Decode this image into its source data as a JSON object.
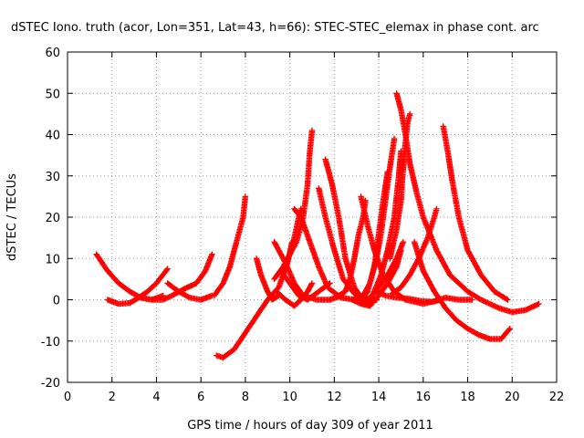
{
  "chart_data": {
    "type": "scatter",
    "title": "dSTEC Iono. truth (acor, Lon=351, Lat=43, h=66): STEC-STEC_elemax in phase cont. arc",
    "xlabel": "GPS time / hours of day 309 of year 2011",
    "ylabel": "dSTEC  / TECUs",
    "xlim": [
      0,
      22
    ],
    "ylim": [
      -20,
      60
    ],
    "xticks": [
      0,
      2,
      4,
      6,
      8,
      10,
      12,
      14,
      16,
      18,
      20,
      22
    ],
    "yticks": [
      -20,
      -10,
      0,
      10,
      20,
      30,
      40,
      50,
      60
    ],
    "grid": true,
    "marker": "+",
    "color": "#ff0000",
    "series": [
      {
        "points": [
          [
            1.3,
            11
          ],
          [
            1.8,
            7
          ],
          [
            2.3,
            4
          ],
          [
            2.8,
            2
          ],
          [
            3.3,
            0.5
          ],
          [
            3.8,
            0
          ],
          [
            4.3,
            1
          ]
        ]
      },
      {
        "points": [
          [
            1.8,
            0
          ],
          [
            2.3,
            -1
          ],
          [
            2.8,
            -0.8
          ],
          [
            3.2,
            0.5
          ],
          [
            3.6,
            2
          ],
          [
            4.0,
            4
          ],
          [
            4.5,
            7.5
          ]
        ]
      },
      {
        "points": [
          [
            3.3,
            0.5
          ],
          [
            3.8,
            0
          ],
          [
            4.3,
            0
          ],
          [
            4.7,
            1
          ],
          [
            5.2,
            2.5
          ],
          [
            5.8,
            4
          ],
          [
            6.2,
            7
          ],
          [
            6.5,
            11
          ]
        ]
      },
      {
        "points": [
          [
            4.5,
            4
          ],
          [
            5.0,
            2
          ],
          [
            5.5,
            0.5
          ],
          [
            6.0,
            0
          ],
          [
            6.5,
            1
          ]
        ]
      },
      {
        "points": [
          [
            6.7,
            -13.5
          ],
          [
            7.0,
            -14
          ],
          [
            7.5,
            -12
          ],
          [
            8.0,
            -8
          ],
          [
            8.5,
            -4
          ],
          [
            9.0,
            0
          ],
          [
            9.5,
            3
          ],
          [
            9.9,
            9
          ],
          [
            10.1,
            14
          ]
        ]
      },
      {
        "points": [
          [
            6.6,
            1
          ],
          [
            7.0,
            4
          ],
          [
            7.3,
            8
          ],
          [
            7.6,
            14
          ],
          [
            7.9,
            20
          ],
          [
            8.0,
            25
          ]
        ]
      },
      {
        "points": [
          [
            8.5,
            10
          ],
          [
            8.7,
            6
          ],
          [
            9.0,
            2
          ],
          [
            9.2,
            0
          ],
          [
            9.5,
            1
          ]
        ]
      },
      {
        "points": [
          [
            9.3,
            5
          ],
          [
            9.7,
            8
          ],
          [
            10.0,
            11
          ],
          [
            10.2,
            15
          ],
          [
            10.4,
            20
          ],
          [
            10.5,
            22
          ]
        ]
      },
      {
        "points": [
          [
            9.3,
            14
          ],
          [
            9.8,
            9
          ],
          [
            10.2,
            4
          ],
          [
            10.6,
            1
          ],
          [
            11.2,
            0
          ],
          [
            11.8,
            0
          ],
          [
            12.3,
            1
          ]
        ]
      },
      {
        "points": [
          [
            9.6,
            7
          ],
          [
            10.0,
            4
          ],
          [
            10.4,
            1
          ],
          [
            10.8,
            0
          ],
          [
            11.3,
            2
          ],
          [
            11.8,
            4
          ]
        ]
      },
      {
        "points": [
          [
            9.4,
            2
          ],
          [
            9.8,
            0
          ],
          [
            10.2,
            -1.5
          ],
          [
            10.5,
            0
          ],
          [
            10.8,
            2
          ],
          [
            11.0,
            4
          ]
        ]
      },
      {
        "points": [
          [
            10.2,
            22
          ],
          [
            10.5,
            20
          ],
          [
            10.9,
            14
          ],
          [
            11.3,
            8
          ],
          [
            11.7,
            3
          ],
          [
            12.3,
            0.5
          ],
          [
            12.9,
            0
          ],
          [
            13.3,
            1
          ]
        ]
      },
      {
        "points": [
          [
            9.9,
            10
          ],
          [
            10.3,
            14
          ],
          [
            10.6,
            20
          ],
          [
            10.8,
            28
          ],
          [
            10.9,
            36
          ],
          [
            11.0,
            41
          ]
        ]
      },
      {
        "points": [
          [
            11.3,
            27
          ],
          [
            11.6,
            20
          ],
          [
            12.0,
            12
          ],
          [
            12.4,
            5
          ],
          [
            12.9,
            1.5
          ],
          [
            13.3,
            0.5
          ],
          [
            13.9,
            0
          ]
        ]
      },
      {
        "points": [
          [
            11.6,
            34
          ],
          [
            11.9,
            28
          ],
          [
            12.2,
            20
          ],
          [
            12.5,
            10
          ],
          [
            12.9,
            3
          ],
          [
            13.4,
            -1
          ],
          [
            13.9,
            0
          ]
        ]
      },
      {
        "points": [
          [
            12.2,
            1
          ],
          [
            12.5,
            2
          ],
          [
            12.7,
            5
          ],
          [
            12.9,
            10
          ],
          [
            13.1,
            16
          ],
          [
            13.3,
            20
          ],
          [
            13.4,
            24
          ]
        ]
      },
      {
        "points": [
          [
            12.9,
            0.5
          ],
          [
            13.2,
            0
          ],
          [
            13.5,
            2
          ],
          [
            13.8,
            8
          ],
          [
            14.0,
            16
          ],
          [
            14.2,
            24
          ],
          [
            14.4,
            31
          ]
        ]
      },
      {
        "points": [
          [
            12.8,
            0
          ],
          [
            13.2,
            -1
          ],
          [
            13.6,
            -1.5
          ],
          [
            14.0,
            1
          ],
          [
            14.4,
            4
          ],
          [
            14.8,
            8
          ],
          [
            15.0,
            12
          ]
        ]
      },
      {
        "points": [
          [
            13.2,
            25
          ],
          [
            13.5,
            18
          ],
          [
            13.8,
            12
          ],
          [
            14.2,
            6
          ],
          [
            14.7,
            2
          ],
          [
            15.2,
            0
          ],
          [
            16.0,
            -1
          ],
          [
            16.8,
            0
          ]
        ]
      },
      {
        "points": [
          [
            13.5,
            -1
          ],
          [
            13.8,
            2
          ],
          [
            14.1,
            6
          ],
          [
            14.4,
            12
          ],
          [
            14.7,
            20
          ],
          [
            14.9,
            30
          ],
          [
            15.0,
            36
          ]
        ]
      },
      {
        "points": [
          [
            13.3,
            1
          ],
          [
            13.6,
            4
          ],
          [
            13.9,
            10
          ],
          [
            14.1,
            16
          ],
          [
            14.3,
            24
          ],
          [
            14.5,
            32
          ],
          [
            14.7,
            39
          ]
        ]
      },
      {
        "points": [
          [
            13.4,
            -0.5
          ],
          [
            13.7,
            1
          ],
          [
            14.0,
            3
          ],
          [
            14.4,
            6
          ],
          [
            14.8,
            10
          ],
          [
            15.1,
            14
          ]
        ]
      },
      {
        "points": [
          [
            14.5,
            10
          ],
          [
            14.8,
            17
          ],
          [
            15.0,
            24
          ],
          [
            15.1,
            32
          ],
          [
            15.2,
            38
          ],
          [
            15.3,
            43
          ],
          [
            15.4,
            45
          ]
        ]
      },
      {
        "points": [
          [
            14.8,
            50
          ],
          [
            15.0,
            46
          ],
          [
            15.2,
            40
          ],
          [
            15.4,
            33
          ],
          [
            15.7,
            26
          ],
          [
            16.0,
            20
          ],
          [
            16.6,
            12
          ],
          [
            17.2,
            6
          ],
          [
            18.0,
            2
          ],
          [
            18.6,
            0
          ],
          [
            19.4,
            -2
          ],
          [
            20.0,
            -3
          ],
          [
            20.6,
            -2.5
          ],
          [
            21.2,
            -1
          ]
        ]
      },
      {
        "points": [
          [
            14.6,
            1.5
          ],
          [
            15.0,
            3
          ],
          [
            15.4,
            6
          ],
          [
            15.8,
            10
          ],
          [
            16.2,
            15
          ],
          [
            16.5,
            20
          ],
          [
            16.6,
            22
          ]
        ]
      },
      {
        "points": [
          [
            13.9,
            2
          ],
          [
            14.3,
            1
          ],
          [
            14.8,
            0.5
          ],
          [
            15.3,
            0.3
          ],
          [
            15.9,
            -0.3
          ],
          [
            16.4,
            -0.5
          ],
          [
            17.0,
            0.5
          ],
          [
            17.6,
            0
          ],
          [
            18.2,
            0
          ]
        ]
      },
      {
        "points": [
          [
            15.6,
            14
          ],
          [
            16.0,
            7
          ],
          [
            16.5,
            2
          ],
          [
            17.0,
            -2
          ],
          [
            17.5,
            -5
          ],
          [
            18.0,
            -7
          ],
          [
            18.5,
            -8.5
          ],
          [
            19.0,
            -9.5
          ],
          [
            19.5,
            -9.5
          ],
          [
            19.9,
            -7
          ]
        ]
      },
      {
        "points": [
          [
            16.9,
            42
          ],
          [
            17.1,
            36
          ],
          [
            17.3,
            29
          ],
          [
            17.6,
            20
          ],
          [
            18.0,
            12
          ],
          [
            18.6,
            6
          ],
          [
            19.2,
            2
          ],
          [
            19.8,
            0
          ]
        ]
      }
    ]
  }
}
